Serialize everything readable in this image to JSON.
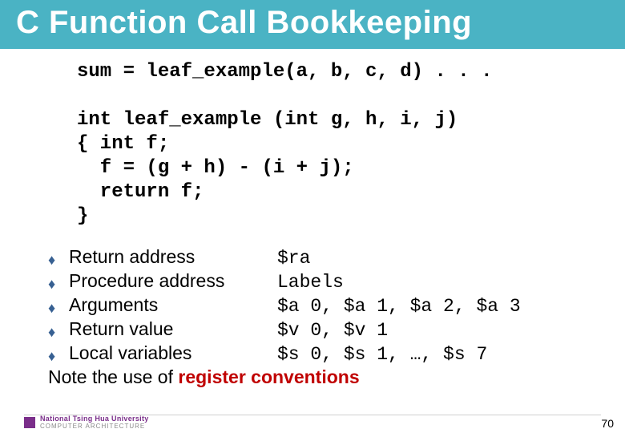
{
  "colors": {
    "title_bg": "#4ab3c4",
    "title_fg": "#ffffff",
    "bullet_diamond": "#376092",
    "emphasis_red": "#c00000",
    "footer_purple": "#7a2e8a",
    "divider": "#cfcfcf"
  },
  "title": "C Function Call Bookkeeping",
  "code": {
    "line1": "sum = leaf_example(a, b, c, d) . . .",
    "blank": " ",
    "line2": "int leaf_example (int g, h, i, j)",
    "line3": "{ int f;",
    "line4": "  f = (g + h) - (i + j);",
    "line5": "  return f;",
    "line6": "}"
  },
  "bullets": [
    {
      "label": "Return address",
      "value": "$ra"
    },
    {
      "label": "Procedure address",
      "value": "Labels"
    },
    {
      "label": "Arguments",
      "value": "$a 0, $a 1, $a 2, $a 3"
    },
    {
      "label": "Return value",
      "value": "$v 0, $v 1"
    },
    {
      "label": "Local variables",
      "value": "$s 0, $s 1, …, $s 7"
    }
  ],
  "note": {
    "prefix": "Note the use of ",
    "emphasis": "register conventions"
  },
  "footer": {
    "university_top": "National Tsing Hua University",
    "university_sub": "COMPUTER  ARCHITECTURE",
    "page": "70"
  }
}
